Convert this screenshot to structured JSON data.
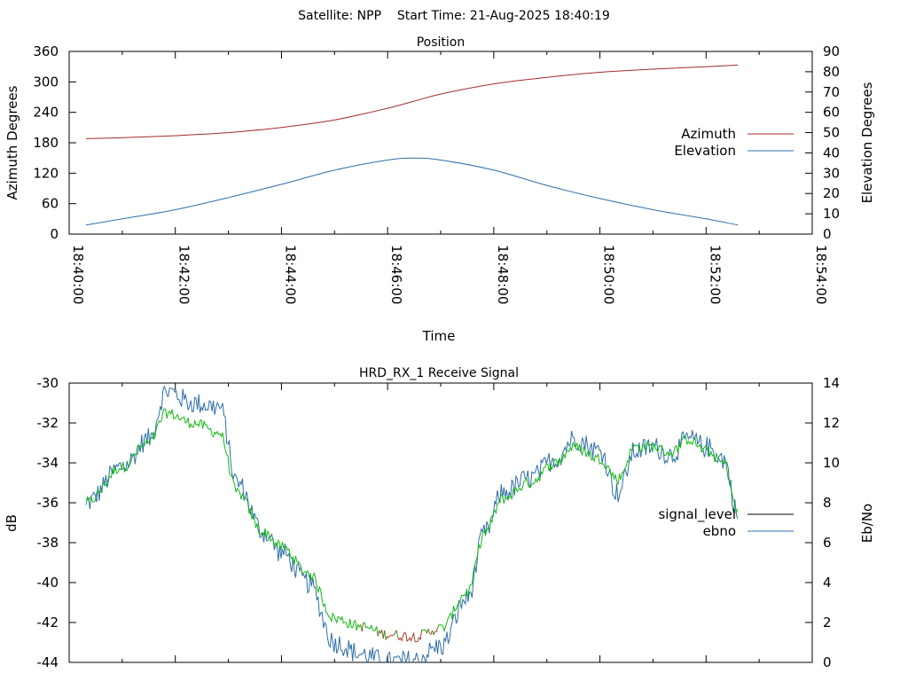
{
  "header": {
    "title": "Satellite: NPP    Start Time: 21-Aug-2025 18:40:19"
  },
  "colors": {
    "azimuth": "#a52a2a",
    "elevation": "#2f6fa8",
    "ebno": "#2f6fa8",
    "signal_green": "#14b814",
    "signal_red": "#b03a2e"
  },
  "chart_data": [
    {
      "type": "line",
      "title": "Position",
      "xlabel": "Time",
      "ylabel": "Azimuth Degrees",
      "y2label": "Elevation Degrees",
      "xlim": [
        "18:40:00",
        "18:54:00"
      ],
      "ylim": [
        0,
        360
      ],
      "y2lim": [
        0,
        90
      ],
      "grid": false,
      "legend_position": "right",
      "x_ticks": [
        "18:40:00",
        "18:42:00",
        "18:44:00",
        "18:46:00",
        "18:48:00",
        "18:50:00",
        "18:52:00",
        "18:54:00"
      ],
      "y_ticks": [
        "0",
        "60",
        "120",
        "180",
        "240",
        "300",
        "360"
      ],
      "y2_ticks": [
        "0",
        "10",
        "20",
        "30",
        "40",
        "50",
        "60",
        "70",
        "80",
        "90"
      ],
      "series": [
        {
          "name": "Azimuth",
          "axis": "y",
          "x": [
            "18:40:19",
            "18:41:00",
            "18:42:00",
            "18:43:00",
            "18:44:00",
            "18:45:00",
            "18:46:00",
            "18:46:30",
            "18:47:00",
            "18:48:00",
            "18:49:00",
            "18:50:00",
            "18:51:00",
            "18:52:00",
            "18:52:36"
          ],
          "values": [
            188,
            190,
            194,
            200,
            210,
            225,
            248,
            262,
            276,
            296,
            309,
            319,
            325,
            330,
            333
          ]
        },
        {
          "name": "Elevation",
          "axis": "y2",
          "x": [
            "18:40:19",
            "18:41:00",
            "18:42:00",
            "18:43:00",
            "18:44:00",
            "18:45:00",
            "18:46:00",
            "18:46:30",
            "18:47:00",
            "18:48:00",
            "18:49:00",
            "18:50:00",
            "18:51:00",
            "18:52:00",
            "18:52:36"
          ],
          "values": [
            4.5,
            7.5,
            12,
            18,
            24.5,
            31.5,
            36.5,
            37.5,
            36.5,
            31.5,
            24,
            17.5,
            12,
            7.5,
            4.5
          ]
        }
      ]
    },
    {
      "type": "line",
      "title": "HRD_RX_1 Receive Signal",
      "ylabel": "dB",
      "y2label": "Eb/No",
      "xlim": [
        "18:40:00",
        "18:54:00"
      ],
      "ylim": [
        -44,
        -30
      ],
      "y2lim": [
        0,
        14
      ],
      "grid": false,
      "legend_position": "right",
      "y_ticks": [
        "-30",
        "-32",
        "-34",
        "-36",
        "-38",
        "-40",
        "-42",
        "-44"
      ],
      "y2_ticks": [
        "0",
        "2",
        "4",
        "6",
        "8",
        "10",
        "12",
        "14"
      ],
      "series": [
        {
          "name": "signal_level",
          "axis": "y",
          "x": [
            "18:40:19",
            "18:41:00",
            "18:41:30",
            "18:41:50",
            "18:42:20",
            "18:42:50",
            "18:43:10",
            "18:43:40",
            "18:44:00",
            "18:44:30",
            "18:45:00",
            "18:45:30",
            "18:46:00",
            "18:46:30",
            "18:47:00",
            "18:47:30",
            "18:47:50",
            "18:48:10",
            "18:48:40",
            "18:49:10",
            "18:49:30",
            "18:50:00",
            "18:50:20",
            "18:50:40",
            "18:51:00",
            "18:51:20",
            "18:51:40",
            "18:52:00",
            "18:52:20",
            "18:52:36"
          ],
          "values": [
            -36.0,
            -34.2,
            -33.0,
            -31.5,
            -32.0,
            -32.5,
            -35.5,
            -37.5,
            -38.2,
            -39.5,
            -41.8,
            -42.2,
            -42.6,
            -42.7,
            -42.3,
            -40.5,
            -37.5,
            -35.8,
            -35.0,
            -34.0,
            -33.2,
            -33.8,
            -34.8,
            -33.2,
            -33.2,
            -33.5,
            -32.8,
            -33.4,
            -34.0,
            -36.5
          ]
        },
        {
          "name": "ebno",
          "axis": "y2",
          "x": [
            "18:40:19",
            "18:41:00",
            "18:41:30",
            "18:41:50",
            "18:42:20",
            "18:42:50",
            "18:43:10",
            "18:43:40",
            "18:44:00",
            "18:44:30",
            "18:45:00",
            "18:45:30",
            "18:46:00",
            "18:46:30",
            "18:47:00",
            "18:47:30",
            "18:47:50",
            "18:48:10",
            "18:48:40",
            "18:49:10",
            "18:49:30",
            "18:50:00",
            "18:50:20",
            "18:50:40",
            "18:51:00",
            "18:51:20",
            "18:51:40",
            "18:52:00",
            "18:52:20",
            "18:52:36"
          ],
          "values": [
            8.0,
            9.8,
            11.2,
            13.6,
            13.0,
            12.8,
            9.0,
            6.5,
            5.5,
            4.0,
            1.0,
            0.4,
            0.0,
            0.1,
            0.8,
            3.2,
            6.5,
            8.5,
            9.2,
            10.2,
            11.2,
            10.6,
            8.5,
            10.6,
            10.8,
            10.4,
            11.2,
            10.8,
            10.2,
            7.4
          ]
        }
      ]
    }
  ]
}
